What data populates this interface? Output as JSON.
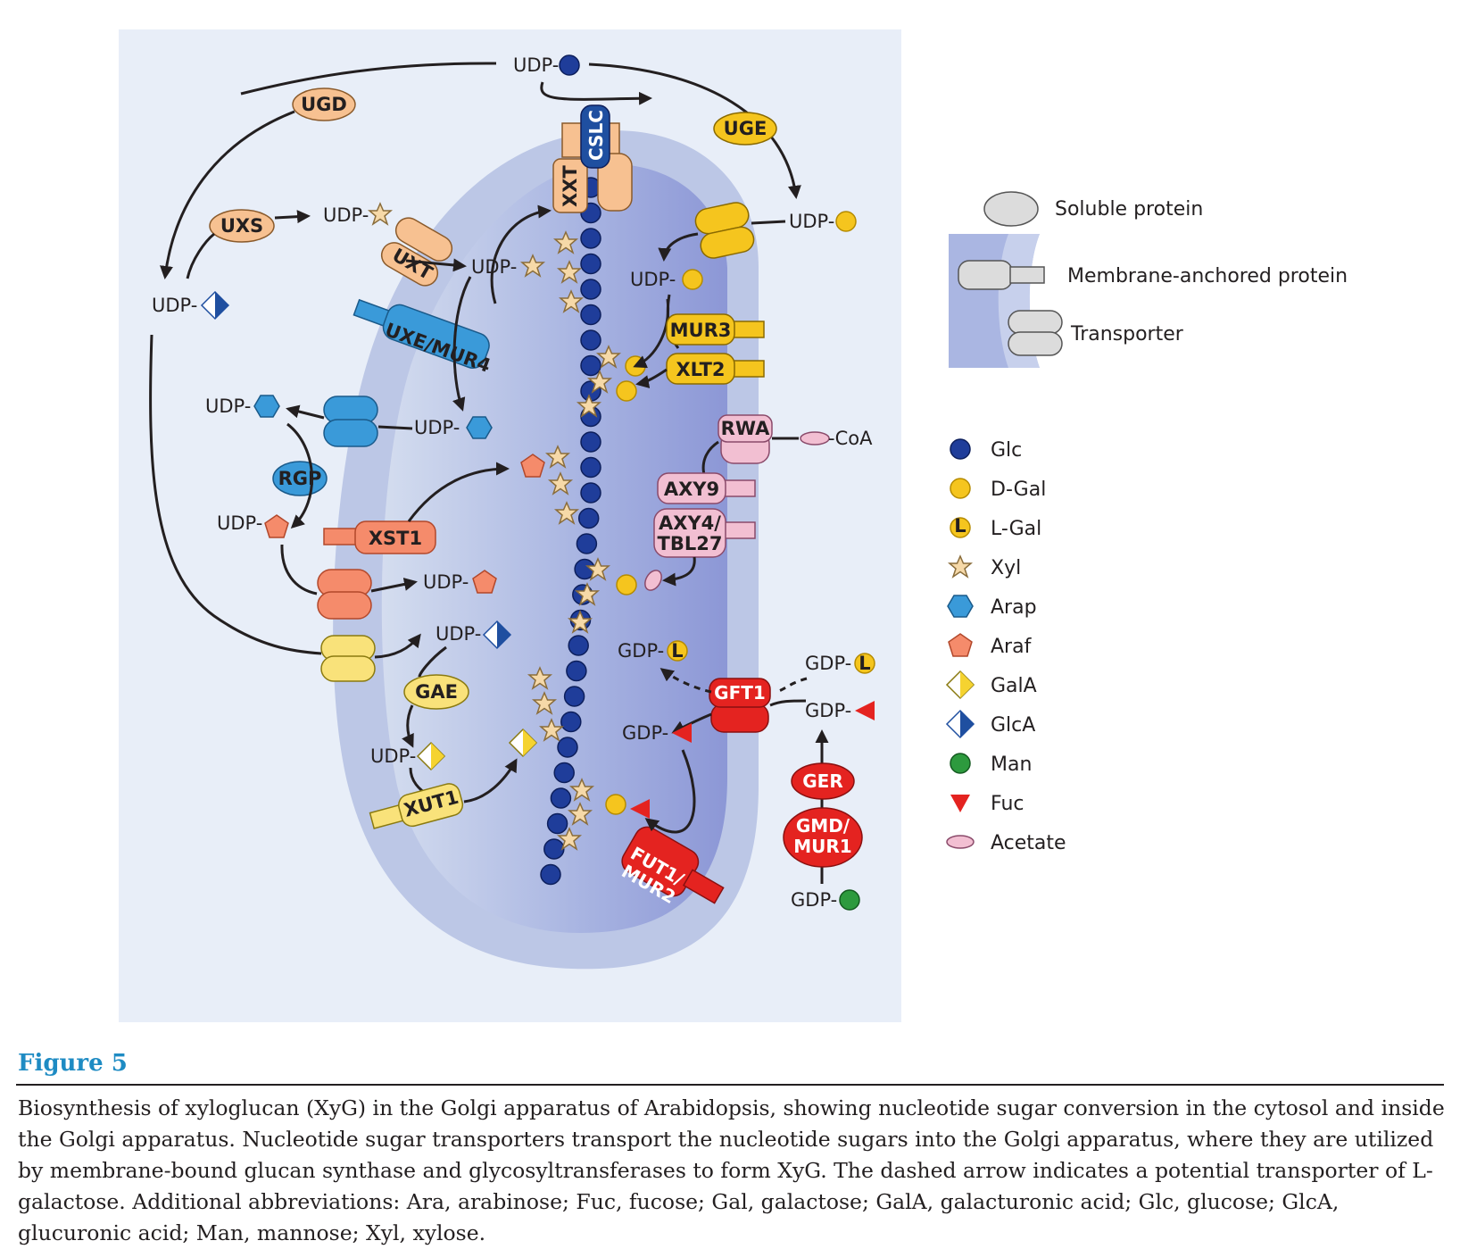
{
  "diagram": {
    "enzymes": {
      "ugd": "UGD",
      "uge": "UGE",
      "uxs": "UXS",
      "uxt": "UXT",
      "cslc": "CSLC",
      "xxt": "XXT",
      "uxe": "UXE/MUR4",
      "rgp": "RGP",
      "xst1": "XST1",
      "gae": "GAE",
      "xut1": "XUT1",
      "mur3": "MUR3",
      "xlt2": "XLT2",
      "rwa": "RWA",
      "axy9": "AXY9",
      "axy4_line1": "AXY4/",
      "axy4_line2": "TBL27",
      "gft1": "GFT1",
      "ger": "GER",
      "gmd_line1": "GMD/",
      "gmd_line2": "MUR1",
      "fut1_line1": "FUT1/",
      "fut1_line2": "MUR2"
    },
    "labels": {
      "udp": "UDP-",
      "gdp": "GDP-",
      "coa": "-CoA",
      "l": "L"
    }
  },
  "legend": {
    "soluble_protein": "Soluble protein",
    "membrane_anchored": "Membrane-anchored protein",
    "transporter": "Transporter",
    "sugars": [
      {
        "icon": "glc-circle-icon",
        "color": "#1f3d9a",
        "label": "Glc"
      },
      {
        "icon": "dgal-circle-icon",
        "color": "#f5c51e",
        "label": "D-Gal"
      },
      {
        "icon": "lgal-circle-icon",
        "color": "#f5c51e",
        "label": "L-Gal"
      },
      {
        "icon": "xyl-star-icon",
        "color": "#f6d9a8",
        "label": "Xyl"
      },
      {
        "icon": "arap-hexagon-icon",
        "color": "#3a9ad9",
        "label": "Arap"
      },
      {
        "icon": "araf-pentagon-icon",
        "color": "#f58b6b",
        "label": "Araf"
      },
      {
        "icon": "gala-diamond-icon",
        "color": "#f5d330",
        "label": "GalA"
      },
      {
        "icon": "glca-diamond-icon",
        "color": "#1f4fa0",
        "label": "GlcA"
      },
      {
        "icon": "man-circle-icon",
        "color": "#2d9a3e",
        "label": "Man"
      },
      {
        "icon": "fuc-triangle-icon",
        "color": "#e42320",
        "label": "Fuc"
      },
      {
        "icon": "acetate-ellipse-icon",
        "color": "#f2bfd2",
        "label": "Acetate"
      }
    ]
  },
  "figure": {
    "title": "Figure 5",
    "caption": "Biosynthesis of xyloglucan (XyG) in the Golgi apparatus of Arabidopsis, showing nucleotide sugar conversion in the cytosol and inside the Golgi apparatus. Nucleotide sugar transporters transport the nucleotide sugars into the Golgi apparatus, where they are utilized by membrane-bound glucan synthase and glycosyltransferases to form XyG. The dashed arrow indicates a potential transporter of L-galactose. Additional abbreviations: Ara, arabinose; Fuc, fucose; Gal, galactose; GalA, galacturonic acid; Glc, glucose; GlcA, glucuronic acid; Man, mannose; Xyl, xylose."
  }
}
